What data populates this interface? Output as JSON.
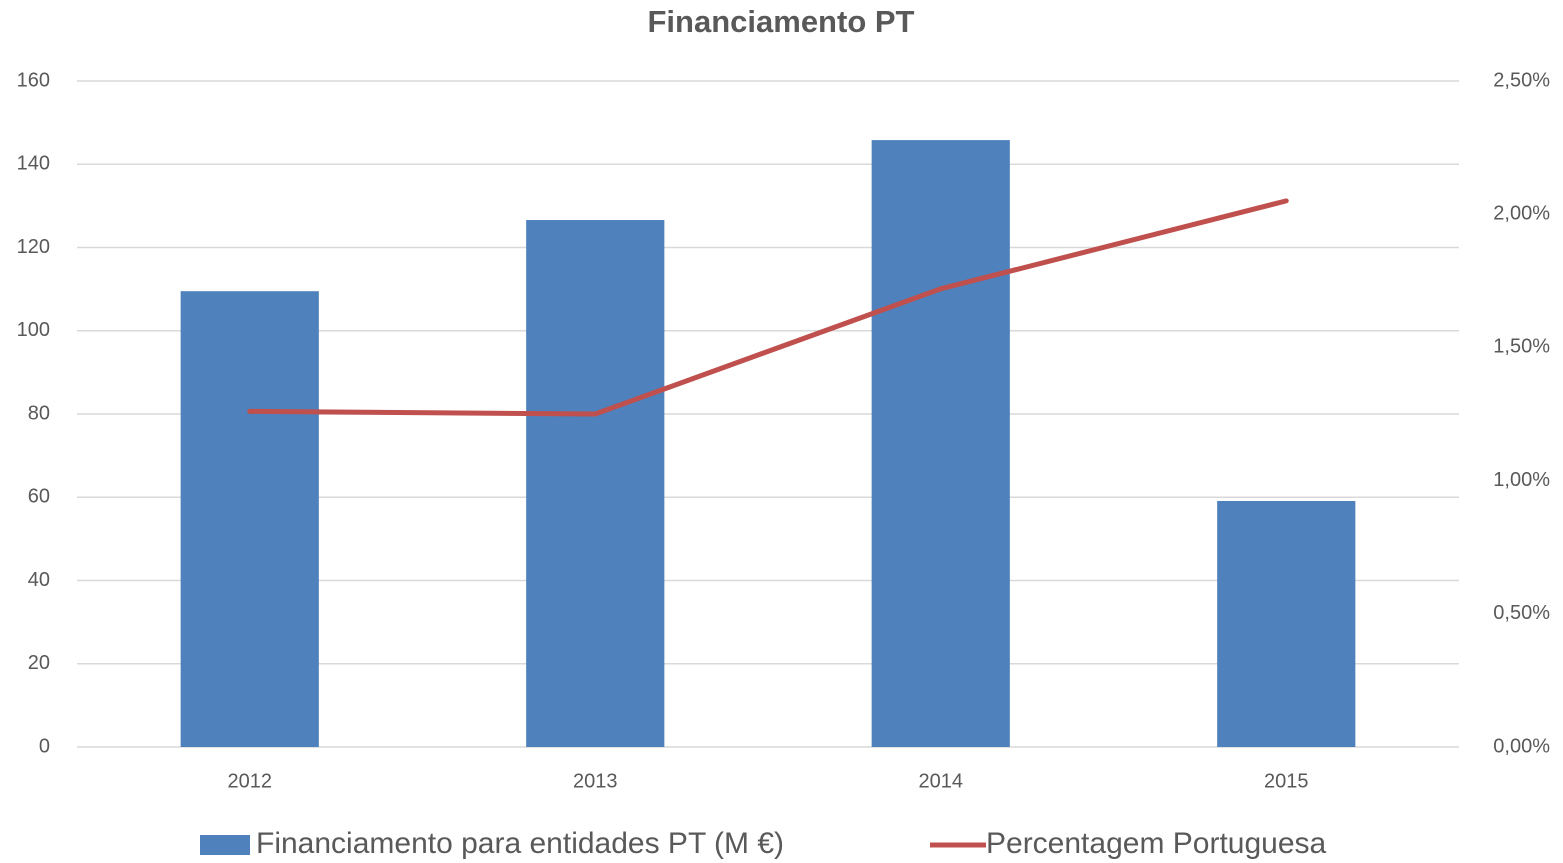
{
  "chart_data": {
    "type": "bar",
    "title": "Financiamento PT",
    "categories": [
      "2012",
      "2013",
      "2014",
      "2015"
    ],
    "series": [
      {
        "name": "Financiamento para entidades PT (M €)",
        "color": "#4f81bd",
        "type": "bar",
        "values": [
          109.5,
          126.6,
          145.8,
          59.1
        ]
      },
      {
        "name": "Percentagem Portuguesa",
        "color": "#c0504d",
        "type": "line",
        "axis": "y2",
        "values": [
          1.26,
          1.25,
          1.72,
          2.05
        ]
      }
    ],
    "ylim": [
      0,
      160
    ],
    "yticks": [
      0,
      20,
      40,
      60,
      80,
      100,
      120,
      140,
      160
    ],
    "y2lim": [
      0,
      2.5
    ],
    "y2ticks": [
      {
        "value": 0,
        "label": "0,00%"
      },
      {
        "value": 0.5,
        "label": "0,50%"
      },
      {
        "value": 1,
        "label": "1,00%"
      },
      {
        "value": 1.5,
        "label": "1,50%"
      },
      {
        "value": 2,
        "label": "2,00%"
      },
      {
        "value": 2.5,
        "label": "2,50%"
      }
    ],
    "grid": true,
    "legend": "bottom"
  }
}
